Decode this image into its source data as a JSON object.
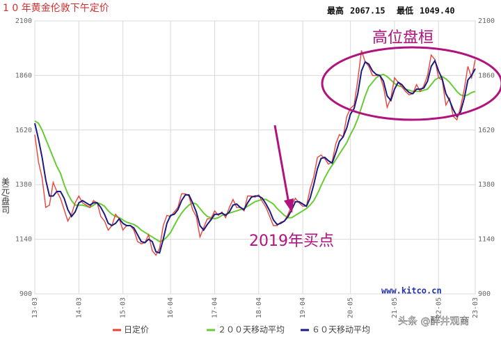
{
  "chart_data": {
    "type": "line",
    "title": "1 0 年黄金伦敦下午定价",
    "stats": [
      {
        "label": "最高",
        "value": "2067.15"
      },
      {
        "label": "最低",
        "value": "1049.40"
      }
    ],
    "y_label": "美元/盘司",
    "annotations": [
      "高位盘桓",
      "2019年买点"
    ],
    "source": "www.kitco.cn",
    "watermark": "头条 @醉井观商",
    "categories": [
      "13-03",
      null,
      null,
      null,
      null,
      null,
      null,
      null,
      null,
      null,
      null,
      null,
      "14-03",
      null,
      null,
      null,
      null,
      null,
      null,
      null,
      null,
      null,
      null,
      null,
      "15-03",
      null,
      null,
      null,
      null,
      null,
      null,
      null,
      null,
      null,
      null,
      null,
      null,
      "16-04",
      null,
      null,
      null,
      null,
      null,
      null,
      null,
      null,
      null,
      null,
      null,
      "17-04",
      null,
      null,
      null,
      null,
      null,
      null,
      null,
      null,
      null,
      null,
      null,
      "18-04",
      null,
      null,
      null,
      null,
      null,
      null,
      null,
      null,
      null,
      null,
      null,
      "19-04",
      null,
      null,
      null,
      null,
      null,
      null,
      null,
      null,
      null,
      null,
      null,
      null,
      "20-05",
      null,
      null,
      null,
      null,
      null,
      null,
      null,
      null,
      null,
      null,
      null,
      "21-05",
      null,
      null,
      null,
      null,
      null,
      null,
      null,
      null,
      null,
      null,
      null,
      "22-05",
      null,
      null,
      null,
      null,
      null,
      null,
      null,
      null,
      null,
      "23-03"
    ],
    "series": [
      {
        "name": "日定价",
        "color": "#e8433a",
        "values": [
          1600,
          1480,
          1410,
          1280,
          1290,
          1390,
          1350,
          1320,
          1270,
          1220,
          1250,
          1300,
          1330,
          1300,
          1290,
          1280,
          1310,
          1300,
          1240,
          1220,
          1180,
          1200,
          1250,
          1230,
          1180,
          1200,
          1200,
          1180,
          1130,
          1120,
          1125,
          1160,
          1090,
          1070,
          1100,
          1200,
          1245,
          1240,
          1260,
          1280,
          1340,
          1340,
          1330,
          1270,
          1240,
          1150,
          1190,
          1230,
          1230,
          1265,
          1245,
          1260,
          1235,
          1280,
          1315,
          1280,
          1280,
          1265,
          1330,
          1330,
          1325,
          1335,
          1305,
          1280,
          1240,
          1200,
          1200,
          1215,
          1220,
          1250,
          1290,
          1320,
          1300,
          1285,
          1285,
          1360,
          1415,
          1500,
          1510,
          1495,
          1470,
          1480,
          1560,
          1600,
          1590,
          1680,
          1715,
          1730,
          1840,
          1970,
          1920,
          1900,
          1860,
          1860,
          1860,
          1810,
          1720,
          1760,
          1850,
          1830,
          1810,
          1790,
          1775,
          1780,
          1820,
          1790,
          1815,
          1860,
          1950,
          1930,
          1850,
          1840,
          1730,
          1760,
          1680,
          1665,
          1720,
          1800,
          1900,
          1850,
          1930
        ]
      },
      {
        "name": "２００天移动平均",
        "color": "#66cc33",
        "values": [
          1660,
          1650,
          1620,
          1580,
          1540,
          1500,
          1460,
          1430,
          1380,
          1340,
          1310,
          1290,
          1290,
          1290,
          1285,
          1280,
          1290,
          1300,
          1295,
          1285,
          1265,
          1250,
          1240,
          1235,
          1225,
          1215,
          1210,
          1205,
          1195,
          1180,
          1170,
          1160,
          1150,
          1140,
          1130,
          1135,
          1150,
          1170,
          1200,
          1230,
          1255,
          1275,
          1290,
          1300,
          1295,
          1275,
          1255,
          1240,
          1235,
          1230,
          1235,
          1245,
          1250,
          1255,
          1260,
          1265,
          1270,
          1275,
          1285,
          1295,
          1305,
          1310,
          1315,
          1315,
          1305,
          1295,
          1275,
          1260,
          1245,
          1235,
          1235,
          1245,
          1255,
          1265,
          1275,
          1290,
          1310,
          1340,
          1375,
          1410,
          1440,
          1465,
          1490,
          1515,
          1540,
          1565,
          1600,
          1630,
          1670,
          1720,
          1770,
          1810,
          1830,
          1850,
          1860,
          1865,
          1855,
          1840,
          1825,
          1815,
          1810,
          1800,
          1795,
          1790,
          1790,
          1790,
          1795,
          1800,
          1820,
          1840,
          1850,
          1855,
          1845,
          1830,
          1810,
          1790,
          1775,
          1770,
          1775,
          1785,
          1790
        ]
      },
      {
        "name": "６０天移动平均",
        "color": "#1a1a80",
        "values": [
          1650,
          1580,
          1500,
          1400,
          1330,
          1330,
          1350,
          1350,
          1320,
          1270,
          1240,
          1260,
          1300,
          1310,
          1300,
          1290,
          1300,
          1300,
          1280,
          1250,
          1210,
          1200,
          1210,
          1230,
          1210,
          1200,
          1200,
          1190,
          1160,
          1130,
          1125,
          1140,
          1130,
          1085,
          1080,
          1140,
          1210,
          1245,
          1250,
          1270,
          1310,
          1335,
          1335,
          1300,
          1260,
          1200,
          1180,
          1205,
          1225,
          1250,
          1250,
          1255,
          1245,
          1260,
          1290,
          1295,
          1280,
          1270,
          1300,
          1325,
          1330,
          1330,
          1320,
          1295,
          1265,
          1225,
          1205,
          1210,
          1220,
          1240,
          1270,
          1305,
          1305,
          1295,
          1285,
          1320,
          1380,
          1450,
          1495,
          1500,
          1485,
          1475,
          1520,
          1570,
          1590,
          1630,
          1690,
          1715,
          1780,
          1880,
          1920,
          1910,
          1880,
          1865,
          1860,
          1835,
          1770,
          1750,
          1800,
          1830,
          1820,
          1800,
          1785,
          1780,
          1800,
          1800,
          1805,
          1835,
          1900,
          1925,
          1880,
          1845,
          1780,
          1750,
          1710,
          1680,
          1700,
          1760,
          1840,
          1860,
          1890
        ]
      }
    ],
    "ylim": [
      900,
      2100
    ],
    "yticks": [
      900,
      1140,
      1380,
      1620,
      1860,
      2100
    ],
    "grid": true
  }
}
